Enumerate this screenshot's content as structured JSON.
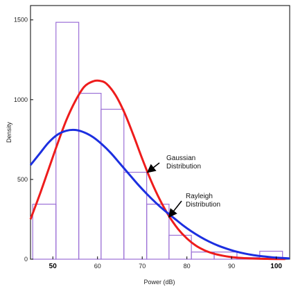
{
  "chart_data": {
    "type": "histogram-with-curves",
    "xlabel": "Power (dB)",
    "ylabel": "Density",
    "xlim": [
      45,
      103
    ],
    "ylim": [
      0,
      1590
    ],
    "x_ticks": [
      {
        "value": 50,
        "label": "50",
        "bold": true
      },
      {
        "value": 60,
        "label": "60",
        "bold": false
      },
      {
        "value": 70,
        "label": "70",
        "bold": false
      },
      {
        "value": 80,
        "label": "80",
        "bold": false
      },
      {
        "value": 90,
        "label": "90",
        "bold": false
      },
      {
        "value": 100,
        "label": "100",
        "bold": true
      }
    ],
    "y_ticks": [
      {
        "value": 0,
        "label": "0"
      },
      {
        "value": 500,
        "label": "500"
      },
      {
        "value": 1000,
        "label": "1000"
      },
      {
        "value": 1500,
        "label": "1500"
      }
    ],
    "histogram": {
      "color": "#9b6fd6",
      "bins": [
        {
          "x0": 45.5,
          "x1": 50.7,
          "value": 345
        },
        {
          "x0": 50.7,
          "x1": 55.8,
          "value": 1485
        },
        {
          "x0": 55.8,
          "x1": 60.8,
          "value": 1040
        },
        {
          "x0": 60.8,
          "x1": 65.9,
          "value": 940
        },
        {
          "x0": 65.9,
          "x1": 71.0,
          "value": 545
        },
        {
          "x0": 71.0,
          "x1": 76.0,
          "value": 345
        },
        {
          "x0": 76.0,
          "x1": 81.0,
          "value": 150
        },
        {
          "x0": 81.0,
          "x1": 86.1,
          "value": 45
        },
        {
          "x0": 86.1,
          "x1": 91.2,
          "value": 45
        },
        {
          "x0": 91.2,
          "x1": 96.3,
          "value": 10
        },
        {
          "x0": 96.3,
          "x1": 101.4,
          "value": 50
        }
      ]
    },
    "series": [
      {
        "name": "Gaussian Distribution",
        "color": "#ee1c1c",
        "x": [
          45,
          47,
          49,
          51,
          53,
          55,
          57,
          59,
          60.5,
          62,
          64,
          66,
          68,
          70,
          72,
          74,
          76,
          78,
          80,
          82,
          84,
          86,
          88,
          90,
          92,
          94,
          96,
          98,
          100,
          102
        ],
        "y": [
          250,
          400,
          560,
          720,
          870,
          990,
          1080,
          1115,
          1118,
          1100,
          1030,
          920,
          780,
          630,
          490,
          370,
          270,
          190,
          130,
          85,
          55,
          35,
          22,
          13,
          8,
          5,
          3,
          2,
          1,
          1
        ]
      },
      {
        "name": "Rayleigh Distribution",
        "color": "#1c2fe0",
        "x": [
          45,
          47,
          49,
          51,
          53,
          55,
          57,
          59,
          61,
          63,
          65,
          67,
          69,
          71,
          73,
          75,
          77,
          79,
          81,
          83,
          85,
          87,
          89,
          91,
          93,
          95,
          97,
          99,
          101,
          103
        ],
        "y": [
          590,
          660,
          730,
          780,
          805,
          810,
          795,
          765,
          720,
          665,
          600,
          535,
          470,
          410,
          355,
          305,
          260,
          215,
          175,
          140,
          110,
          85,
          65,
          48,
          35,
          25,
          18,
          12,
          8,
          5
        ]
      }
    ],
    "annotations": [
      {
        "lines": [
          "Gaussian",
          "Distribution"
        ],
        "arrow_to": [
          71.2,
          545
        ]
      },
      {
        "lines": [
          "Rayleigh",
          "Distribution"
        ],
        "arrow_to": [
          76.0,
          265
        ]
      }
    ]
  }
}
